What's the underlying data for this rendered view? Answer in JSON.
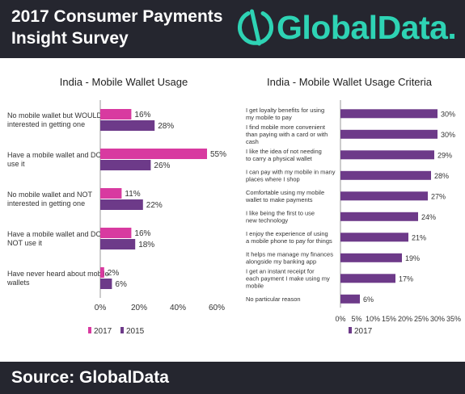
{
  "header": {
    "title": "2017 Consumer Payments Insight Survey",
    "logo_text": "GlobalData."
  },
  "footer": {
    "source": "Source: GlobalData"
  },
  "colors": {
    "bg_dark": "#25262f",
    "brand": "#2ed3b4",
    "s2017": "#d83aa0",
    "s2015": "#6d3a89",
    "criteria": "#6d3a89"
  },
  "chart_data": [
    {
      "type": "bar",
      "orientation": "horizontal",
      "title": "India - Mobile Wallet Usage",
      "categories": [
        "No mobile wallet but WOULD be interested in getting one",
        "Have a mobile wallet and DO use it",
        "No mobile wallet and NOT interested in getting one",
        "Have a mobile wallet and DO NOT use it",
        "Have never heard about mobile wallets"
      ],
      "series": [
        {
          "name": "2017",
          "values": [
            16,
            55,
            11,
            16,
            2
          ],
          "labels": [
            "16%",
            "55%",
            "11%",
            "16%",
            "2%"
          ]
        },
        {
          "name": "2015",
          "values": [
            28,
            26,
            22,
            18,
            6
          ],
          "labels": [
            "28%",
            "26%",
            "22%",
            "18%",
            "6%"
          ]
        }
      ],
      "xlim": [
        0,
        60
      ],
      "xticks": [
        "0%",
        "20%",
        "40%",
        "60%"
      ],
      "legend": "bottom"
    },
    {
      "type": "bar",
      "orientation": "horizontal",
      "title": "India - Mobile Wallet Usage Criteria",
      "categories": [
        "I get loyalty benefits for using my mobile to pay",
        "I find mobile more convenient than paying with a card or with cash",
        "I like the idea of not needing to carry a physical wallet",
        "I can pay with my mobile in many places where I shop",
        "Comfortable using my mobile wallet to make payments",
        "I like being the first to use new technology",
        "I enjoy the experience of using a mobile phone to pay for things",
        "It helps me manage my finances alongside my banking app",
        "I get an instant receipt for each payment I make using my mobile",
        "No particular reason"
      ],
      "series": [
        {
          "name": "2017",
          "values": [
            30,
            30,
            29,
            28,
            27,
            24,
            21,
            19,
            17,
            6
          ],
          "labels": [
            "30%",
            "30%",
            "29%",
            "28%",
            "27%",
            "24%",
            "21%",
            "19%",
            "17%",
            "6%"
          ]
        }
      ],
      "xlim": [
        0,
        35
      ],
      "xticks": [
        "0%",
        "5%",
        "10%",
        "15%",
        "20%",
        "25%",
        "30%",
        "35%"
      ],
      "legend": "bottom"
    }
  ]
}
